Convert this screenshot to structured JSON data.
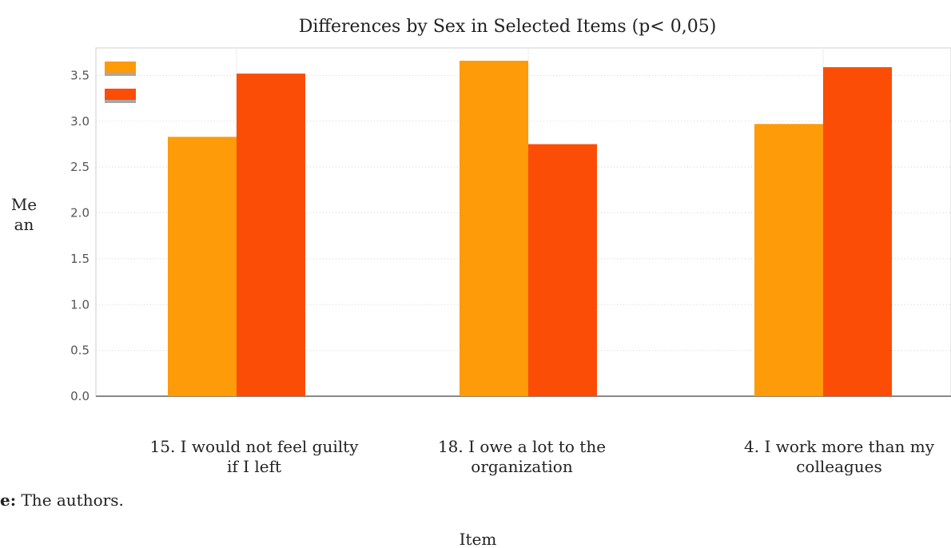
{
  "chart_data": {
    "type": "bar",
    "title": "Differences by Sex in Selected Items (p< 0,05)",
    "ylabel_lines": [
      "Me",
      "an"
    ],
    "xlabel": "Item",
    "categories": [
      [
        "15. I would not feel guilty",
        "if I left"
      ],
      [
        "18. I owe a lot to the",
        "organization"
      ],
      [
        "4. I work more than my",
        "colleagues"
      ]
    ],
    "series": [
      {
        "values": [
          2.83,
          3.66,
          2.97
        ],
        "color": "#fd9b08"
      },
      {
        "values": [
          3.52,
          2.75,
          3.59
        ],
        "color": "#fb4d06"
      }
    ],
    "ylim": [
      0,
      3.8
    ],
    "yticks": [
      "0.0",
      "0.5",
      "1.0",
      "1.5",
      "2.0",
      "2.5",
      "3.0",
      "3.5"
    ],
    "grid": true,
    "legend": "top-left"
  },
  "source_note": {
    "bold": "e:",
    "text": " The authors."
  }
}
